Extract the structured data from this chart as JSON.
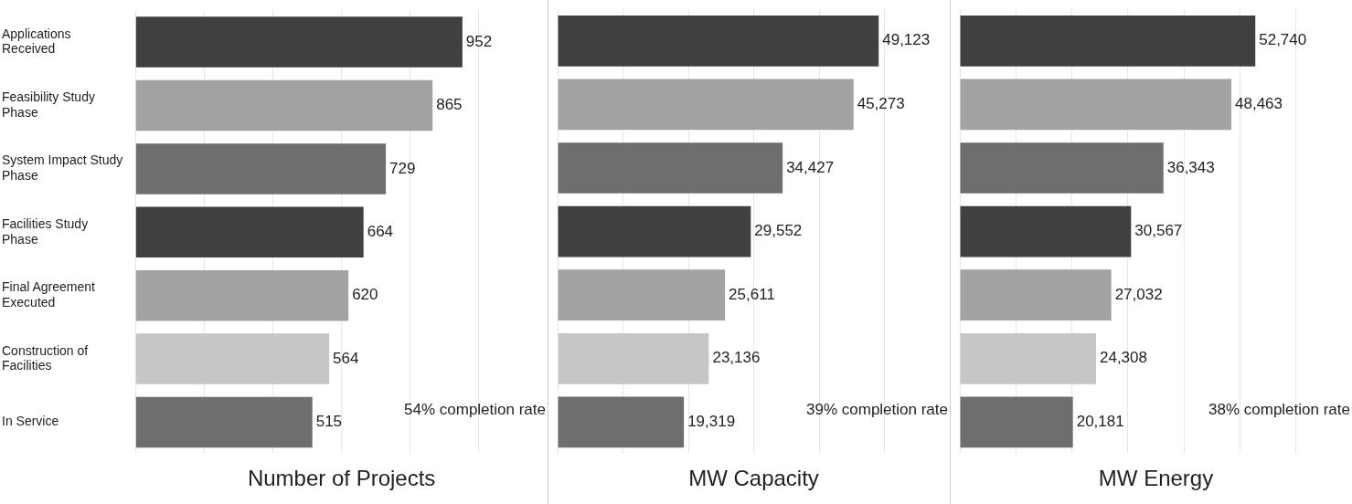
{
  "chart_data": [
    {
      "type": "bar",
      "orientation": "horizontal",
      "xlabel": "Number of Projects",
      "categories": [
        "Applications Received",
        "Feasibility Study Phase",
        "System Impact Study Phase",
        "Facilities Study Phase",
        "Final Agreement Executed",
        "Construction of Facilities",
        "In Service"
      ],
      "values": [
        952,
        865,
        729,
        664,
        620,
        564,
        515
      ],
      "value_labels": [
        "952",
        "865",
        "729",
        "664",
        "620",
        "564",
        "515"
      ],
      "colors": [
        "#404042",
        "#a2a2a5",
        "#6e6e71",
        "#404042",
        "#a2a2a5",
        "#c6c6c8",
        "#6e6e71"
      ],
      "grid": "x",
      "tick_labels": "y",
      "legend": false,
      "annotations": [
        "54% completion rate"
      ]
    },
    {
      "type": "bar",
      "orientation": "horizontal",
      "xlabel": "MW Capacity",
      "categories": [
        null,
        null,
        null,
        null,
        null,
        null,
        null
      ],
      "values": [
        49123,
        45273,
        34427,
        29552,
        25611,
        23136,
        19319
      ],
      "value_labels": [
        "49,123",
        "45,273",
        "34,427",
        "29,552",
        "25,611",
        "23,136",
        "19,319"
      ],
      "colors": [
        "#404042",
        "#a2a2a5",
        "#6e6e71",
        "#404042",
        "#a2a2a5",
        "#c6c6c8",
        "#6e6e71"
      ],
      "grid": "x",
      "tick_labels": false,
      "legend": false,
      "annotations": [
        "39% completion rate"
      ]
    },
    {
      "type": "bar",
      "orientation": "horizontal",
      "xlabel": "MW Energy",
      "categories": [
        null,
        null,
        null,
        null,
        null,
        null,
        null
      ],
      "values": [
        52740,
        48463,
        36343,
        30567,
        27032,
        24308,
        20181
      ],
      "value_labels": [
        "52,740",
        "48,463",
        "36,343",
        "30,567",
        "27,032",
        "24,308",
        "20,181"
      ],
      "colors": [
        "#404042",
        "#a2a2a5",
        "#6e6e71",
        "#404042",
        "#a2a2a5",
        "#c6c6c8",
        "#6e6e71"
      ],
      "grid": "x",
      "tick_labels": false,
      "legend": false,
      "annotations": [
        "38% completion rate"
      ]
    }
  ]
}
